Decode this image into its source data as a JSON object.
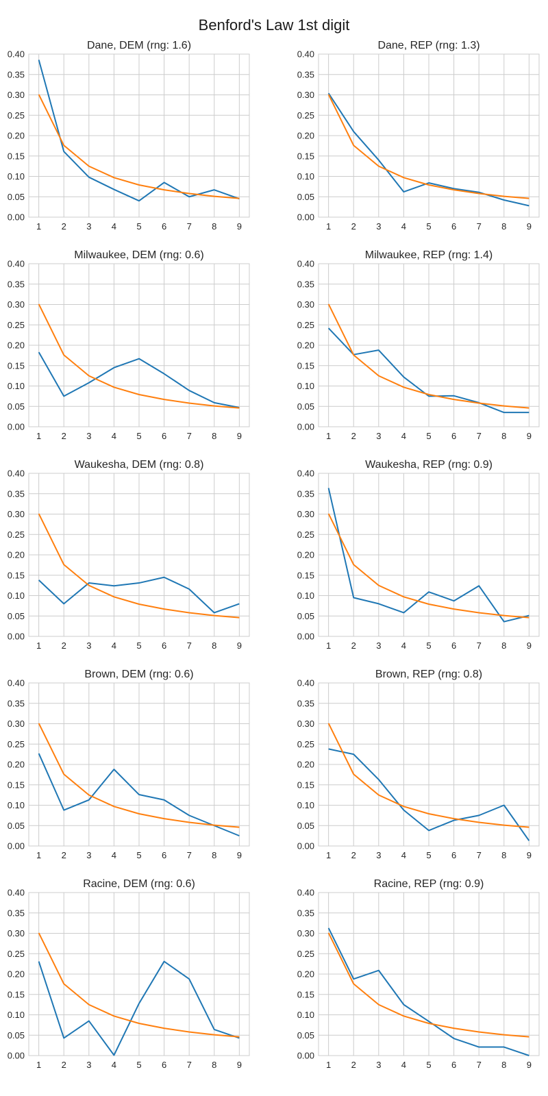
{
  "figure": {
    "title": "Benford's Law 1st digit"
  },
  "colors": {
    "observed": "#1f77b4",
    "benford": "#ff7f0e",
    "grid": "#cccccc",
    "background": "#ffffff"
  },
  "chart_data": [
    {
      "type": "line",
      "title": "Dane, DEM (rng: 1.6)",
      "x": [
        1,
        2,
        3,
        4,
        5,
        6,
        7,
        8,
        9
      ],
      "xticks": [
        "1",
        "2",
        "3",
        "4",
        "5",
        "6",
        "7",
        "8",
        "9"
      ],
      "yticks": [
        "0.00",
        "0.05",
        "0.10",
        "0.15",
        "0.20",
        "0.25",
        "0.30",
        "0.35",
        "0.40"
      ],
      "ylim": [
        0,
        0.4
      ],
      "grid": true,
      "series": [
        {
          "values": [
            0.386,
            0.161,
            0.098,
            0.068,
            0.04,
            0.085,
            0.05,
            0.067,
            0.045
          ]
        },
        {
          "values": [
            0.301,
            0.176,
            0.125,
            0.097,
            0.079,
            0.067,
            0.058,
            0.051,
            0.046
          ]
        }
      ]
    },
    {
      "type": "line",
      "title": "Dane, REP (rng: 1.3)",
      "x": [
        1,
        2,
        3,
        4,
        5,
        6,
        7,
        8,
        9
      ],
      "xticks": [
        "1",
        "2",
        "3",
        "4",
        "5",
        "6",
        "7",
        "8",
        "9"
      ],
      "yticks": [
        "0.00",
        "0.05",
        "0.10",
        "0.15",
        "0.20",
        "0.25",
        "0.30",
        "0.35",
        "0.40"
      ],
      "ylim": [
        0,
        0.4
      ],
      "grid": true,
      "series": [
        {
          "values": [
            0.304,
            0.21,
            0.14,
            0.062,
            0.084,
            0.07,
            0.061,
            0.042,
            0.028
          ]
        },
        {
          "values": [
            0.301,
            0.176,
            0.125,
            0.097,
            0.079,
            0.067,
            0.058,
            0.051,
            0.046
          ]
        }
      ]
    },
    {
      "type": "line",
      "title": "Milwaukee, DEM (rng: 0.6)",
      "x": [
        1,
        2,
        3,
        4,
        5,
        6,
        7,
        8,
        9
      ],
      "xticks": [
        "1",
        "2",
        "3",
        "4",
        "5",
        "6",
        "7",
        "8",
        "9"
      ],
      "yticks": [
        "0.00",
        "0.05",
        "0.10",
        "0.15",
        "0.20",
        "0.25",
        "0.30",
        "0.35",
        "0.40"
      ],
      "ylim": [
        0,
        0.4
      ],
      "grid": true,
      "series": [
        {
          "values": [
            0.183,
            0.075,
            0.108,
            0.145,
            0.167,
            0.13,
            0.089,
            0.059,
            0.047
          ]
        },
        {
          "values": [
            0.301,
            0.176,
            0.125,
            0.097,
            0.079,
            0.067,
            0.058,
            0.051,
            0.046
          ]
        }
      ]
    },
    {
      "type": "line",
      "title": "Milwaukee, REP (rng: 1.4)",
      "x": [
        1,
        2,
        3,
        4,
        5,
        6,
        7,
        8,
        9
      ],
      "xticks": [
        "1",
        "2",
        "3",
        "4",
        "5",
        "6",
        "7",
        "8",
        "9"
      ],
      "yticks": [
        "0.00",
        "0.05",
        "0.10",
        "0.15",
        "0.20",
        "0.25",
        "0.30",
        "0.35",
        "0.40"
      ],
      "ylim": [
        0,
        0.4
      ],
      "grid": true,
      "series": [
        {
          "values": [
            0.242,
            0.177,
            0.188,
            0.122,
            0.075,
            0.076,
            0.059,
            0.035,
            0.035
          ]
        },
        {
          "values": [
            0.301,
            0.176,
            0.125,
            0.097,
            0.079,
            0.067,
            0.058,
            0.051,
            0.046
          ]
        }
      ]
    },
    {
      "type": "line",
      "title": "Waukesha, DEM (rng: 0.8)",
      "x": [
        1,
        2,
        3,
        4,
        5,
        6,
        7,
        8,
        9
      ],
      "xticks": [
        "1",
        "2",
        "3",
        "4",
        "5",
        "6",
        "7",
        "8",
        "9"
      ],
      "yticks": [
        "0.00",
        "0.05",
        "0.10",
        "0.15",
        "0.20",
        "0.25",
        "0.30",
        "0.35",
        "0.40"
      ],
      "ylim": [
        0,
        0.4
      ],
      "grid": true,
      "series": [
        {
          "values": [
            0.138,
            0.08,
            0.131,
            0.124,
            0.131,
            0.145,
            0.116,
            0.058,
            0.08
          ]
        },
        {
          "values": [
            0.301,
            0.176,
            0.125,
            0.097,
            0.079,
            0.067,
            0.058,
            0.051,
            0.046
          ]
        }
      ]
    },
    {
      "type": "line",
      "title": "Waukesha, REP (rng: 0.9)",
      "x": [
        1,
        2,
        3,
        4,
        5,
        6,
        7,
        8,
        9
      ],
      "xticks": [
        "1",
        "2",
        "3",
        "4",
        "5",
        "6",
        "7",
        "8",
        "9"
      ],
      "yticks": [
        "0.00",
        "0.05",
        "0.10",
        "0.15",
        "0.20",
        "0.25",
        "0.30",
        "0.35",
        "0.40"
      ],
      "ylim": [
        0,
        0.4
      ],
      "grid": true,
      "series": [
        {
          "values": [
            0.364,
            0.095,
            0.08,
            0.058,
            0.109,
            0.087,
            0.124,
            0.036,
            0.051
          ]
        },
        {
          "values": [
            0.301,
            0.176,
            0.125,
            0.097,
            0.079,
            0.067,
            0.058,
            0.051,
            0.046
          ]
        }
      ]
    },
    {
      "type": "line",
      "title": "Brown, DEM (rng: 0.6)",
      "x": [
        1,
        2,
        3,
        4,
        5,
        6,
        7,
        8,
        9
      ],
      "xticks": [
        "1",
        "2",
        "3",
        "4",
        "5",
        "6",
        "7",
        "8",
        "9"
      ],
      "yticks": [
        "0.00",
        "0.05",
        "0.10",
        "0.15",
        "0.20",
        "0.25",
        "0.30",
        "0.35",
        "0.40"
      ],
      "ylim": [
        0,
        0.4
      ],
      "grid": true,
      "series": [
        {
          "values": [
            0.227,
            0.088,
            0.113,
            0.188,
            0.126,
            0.113,
            0.075,
            0.05,
            0.025
          ]
        },
        {
          "values": [
            0.301,
            0.176,
            0.125,
            0.097,
            0.079,
            0.067,
            0.058,
            0.051,
            0.046
          ]
        }
      ]
    },
    {
      "type": "line",
      "title": "Brown, REP (rng: 0.8)",
      "x": [
        1,
        2,
        3,
        4,
        5,
        6,
        7,
        8,
        9
      ],
      "xticks": [
        "1",
        "2",
        "3",
        "4",
        "5",
        "6",
        "7",
        "8",
        "9"
      ],
      "yticks": [
        "0.00",
        "0.05",
        "0.10",
        "0.15",
        "0.20",
        "0.25",
        "0.30",
        "0.35",
        "0.40"
      ],
      "ylim": [
        0,
        0.4
      ],
      "grid": true,
      "series": [
        {
          "values": [
            0.238,
            0.225,
            0.163,
            0.088,
            0.038,
            0.063,
            0.075,
            0.1,
            0.013
          ]
        },
        {
          "values": [
            0.301,
            0.176,
            0.125,
            0.097,
            0.079,
            0.067,
            0.058,
            0.051,
            0.046
          ]
        }
      ]
    },
    {
      "type": "line",
      "title": "Racine, DEM (rng: 0.6)",
      "x": [
        1,
        2,
        3,
        4,
        5,
        6,
        7,
        8,
        9
      ],
      "xticks": [
        "1",
        "2",
        "3",
        "4",
        "5",
        "6",
        "7",
        "8",
        "9"
      ],
      "yticks": [
        "0.00",
        "0.05",
        "0.10",
        "0.15",
        "0.20",
        "0.25",
        "0.30",
        "0.35",
        "0.40"
      ],
      "ylim": [
        0,
        0.4
      ],
      "grid": true,
      "series": [
        {
          "values": [
            0.231,
            0.043,
            0.085,
            0.001,
            0.128,
            0.231,
            0.188,
            0.064,
            0.043
          ]
        },
        {
          "values": [
            0.301,
            0.176,
            0.125,
            0.097,
            0.079,
            0.067,
            0.058,
            0.051,
            0.046
          ]
        }
      ]
    },
    {
      "type": "line",
      "title": "Racine, REP (rng: 0.9)",
      "x": [
        1,
        2,
        3,
        4,
        5,
        6,
        7,
        8,
        9
      ],
      "xticks": [
        "1",
        "2",
        "3",
        "4",
        "5",
        "6",
        "7",
        "8",
        "9"
      ],
      "yticks": [
        "0.00",
        "0.05",
        "0.10",
        "0.15",
        "0.20",
        "0.25",
        "0.30",
        "0.35",
        "0.40"
      ],
      "ylim": [
        0,
        0.4
      ],
      "grid": true,
      "series": [
        {
          "values": [
            0.313,
            0.188,
            0.209,
            0.125,
            0.084,
            0.042,
            0.021,
            0.021,
            0.0
          ]
        },
        {
          "values": [
            0.301,
            0.176,
            0.125,
            0.097,
            0.079,
            0.067,
            0.058,
            0.051,
            0.046
          ]
        }
      ]
    }
  ]
}
